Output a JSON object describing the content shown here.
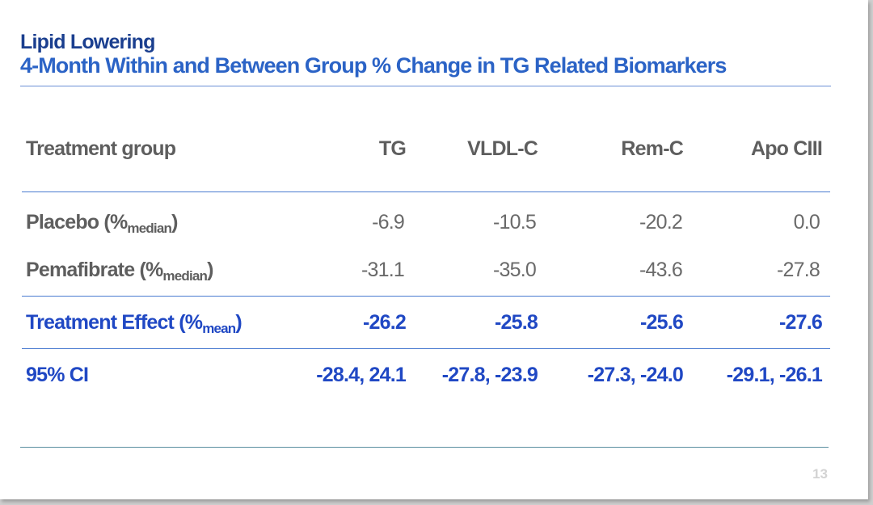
{
  "header": {
    "supertitle": "Lipid Lowering",
    "title": "4-Month Within and Between Group % Change in TG Related Biomarkers"
  },
  "table": {
    "columns": [
      "Treatment group",
      "TG",
      "VLDL-C",
      "Rem-C",
      "Apo CIII"
    ],
    "rows": [
      {
        "label_main": "Placebo (%",
        "label_sub": "median",
        "label_end": ")",
        "values": [
          "-6.9",
          "-10.5",
          "-20.2",
          "0.0"
        ]
      },
      {
        "label_main": "Pemafibrate (%",
        "label_sub": "median",
        "label_end": ")",
        "values": [
          "-31.1",
          "-35.0",
          "-43.6",
          "-27.8"
        ]
      },
      {
        "label_main": "Treatment Effect (%",
        "label_sub": "mean",
        "label_end": ")",
        "values": [
          "-26.2",
          "-25.8",
          "-25.6",
          "-27.6"
        ]
      },
      {
        "label_main": "95% CI",
        "label_sub": "",
        "label_end": "",
        "values": [
          "-28.4, 24.1",
          "-27.8, -23.9",
          "-27.3, -24.0",
          "-29.1, -26.1"
        ]
      }
    ]
  },
  "page_number": "13",
  "colors": {
    "supertitle": "#1b3f8f",
    "title": "#2b63c6",
    "highlight_rows": "#2048c4",
    "body_text": "#6a6a6a",
    "rules": "#4a7bd0"
  }
}
